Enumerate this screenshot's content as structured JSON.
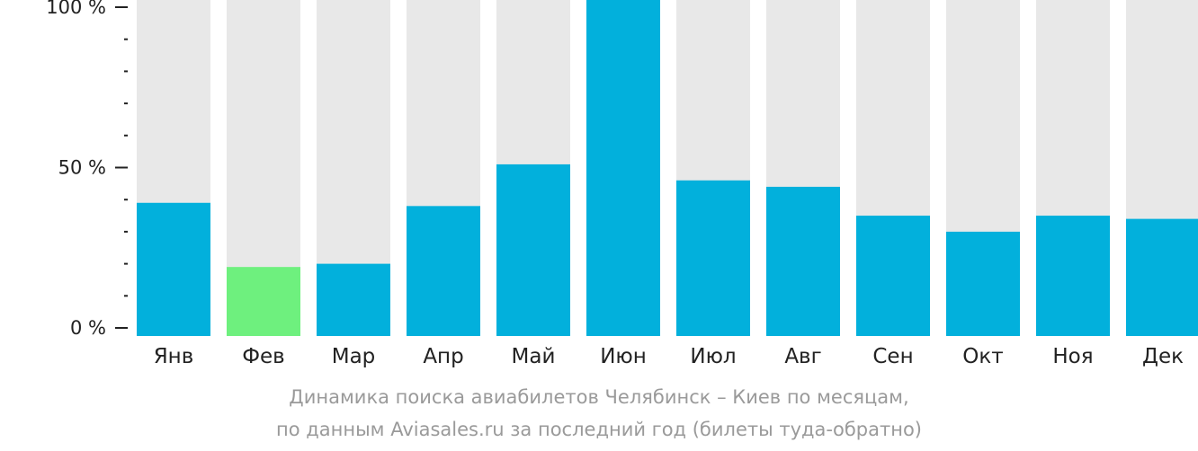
{
  "chart_data": {
    "type": "bar",
    "categories": [
      "Янв",
      "Фев",
      "Мар",
      "Апр",
      "Май",
      "Июн",
      "Июл",
      "Авг",
      "Сен",
      "Окт",
      "Ноя",
      "Дек"
    ],
    "values": [
      39,
      19,
      20,
      38,
      51,
      100,
      46,
      44,
      35,
      30,
      35,
      34
    ],
    "ylim": [
      0,
      100
    ],
    "yticks": [
      {
        "value": 0,
        "label": "0 %"
      },
      {
        "value": 50,
        "label": "50 %"
      },
      {
        "value": 100,
        "label": "100 %"
      }
    ],
    "minor_tick_step": 10,
    "highlight_index": 1,
    "colors": {
      "bar": "#02b0dc",
      "highlight": "#6ef07e",
      "background_bar": "#e8e8e8",
      "axis": "#222222"
    },
    "grid": false,
    "legend": "none"
  },
  "caption": {
    "line1": "Динамика поиска авиабилетов Челябинск – Киев по месяцам,",
    "line2": "по данным Aviasales.ru за последний год (билеты туда-обратно)"
  }
}
